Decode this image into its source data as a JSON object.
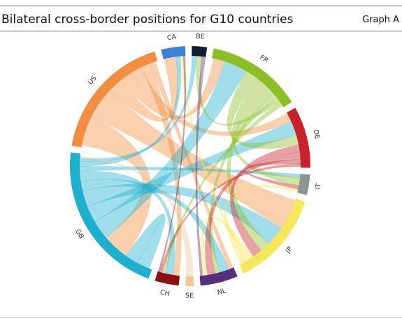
{
  "header": {
    "title": "Bilateral cross-border positions for G10 countries",
    "graph_id": "Graph A"
  },
  "chart_data": {
    "type": "chord",
    "title": "Bilateral cross-border positions for G10 countries",
    "nodes": [
      {
        "id": "CA",
        "label": "CA",
        "color": "#3a82d6",
        "share": 0.035
      },
      {
        "id": "BE",
        "label": "BE",
        "color": "#0f2035",
        "share": 0.022
      },
      {
        "id": "FR",
        "label": "FR",
        "color": "#8cbf26",
        "share": 0.14
      },
      {
        "id": "DE",
        "label": "DE",
        "color": "#c8222b",
        "share": 0.09
      },
      {
        "id": "IT",
        "label": "IT",
        "color": "#8d9791",
        "share": 0.03
      },
      {
        "id": "JP",
        "label": "JP",
        "color": "#f7e75a",
        "share": 0.14
      },
      {
        "id": "NL",
        "label": "NL",
        "color": "#54307d",
        "share": 0.055
      },
      {
        "id": "SE",
        "label": "SE",
        "color": "#edc89a",
        "share": 0.012
      },
      {
        "id": "CH",
        "label": "CH",
        "color": "#8e1015",
        "share": 0.035
      },
      {
        "id": "GB",
        "label": "GB",
        "color": "#1fb0cf",
        "share": 0.23
      },
      {
        "id": "US",
        "label": "US",
        "color": "#f08d3f",
        "share": 0.19
      }
    ],
    "links": [
      {
        "source": "GB",
        "target": "GB",
        "value": 0.4
      },
      {
        "source": "US",
        "target": "GB",
        "value": 0.8
      },
      {
        "source": "US",
        "target": "JP",
        "value": 0.8
      },
      {
        "source": "US",
        "target": "CA",
        "value": 0.4
      },
      {
        "source": "US",
        "target": "FR",
        "value": 0.3
      },
      {
        "source": "US",
        "target": "DE",
        "value": 0.3
      },
      {
        "source": "US",
        "target": "CH",
        "value": 0.25
      },
      {
        "source": "US",
        "target": "NL",
        "value": 0.15
      },
      {
        "source": "GB",
        "target": "FR",
        "value": 0.6
      },
      {
        "source": "GB",
        "target": "DE",
        "value": 0.5
      },
      {
        "source": "GB",
        "target": "JP",
        "value": 0.5
      },
      {
        "source": "GB",
        "target": "NL",
        "value": 0.3
      },
      {
        "source": "GB",
        "target": "CH",
        "value": 0.3
      },
      {
        "source": "GB",
        "target": "IT",
        "value": 0.15
      },
      {
        "source": "GB",
        "target": "CA",
        "value": 0.15
      },
      {
        "source": "GB",
        "target": "BE",
        "value": 0.1
      },
      {
        "source": "FR",
        "target": "DE",
        "value": 0.35
      },
      {
        "source": "FR",
        "target": "IT",
        "value": 0.3
      },
      {
        "source": "FR",
        "target": "JP",
        "value": 0.25
      },
      {
        "source": "FR",
        "target": "NL",
        "value": 0.15
      },
      {
        "source": "FR",
        "target": "BE",
        "value": 0.12
      },
      {
        "source": "FR",
        "target": "CH",
        "value": 0.12
      },
      {
        "source": "DE",
        "target": "JP",
        "value": 0.25
      },
      {
        "source": "DE",
        "target": "NL",
        "value": 0.25
      },
      {
        "source": "DE",
        "target": "IT",
        "value": 0.15
      },
      {
        "source": "DE",
        "target": "CH",
        "value": 0.1
      },
      {
        "source": "JP",
        "target": "NL",
        "value": 0.15
      },
      {
        "source": "JP",
        "target": "CA",
        "value": 0.1
      },
      {
        "source": "JP",
        "target": "IT",
        "value": 0.12
      },
      {
        "source": "NL",
        "target": "BE",
        "value": 0.08
      },
      {
        "source": "CH",
        "target": "CA",
        "value": 0.06
      },
      {
        "source": "SE",
        "target": "GB",
        "value": 0.05
      }
    ]
  }
}
